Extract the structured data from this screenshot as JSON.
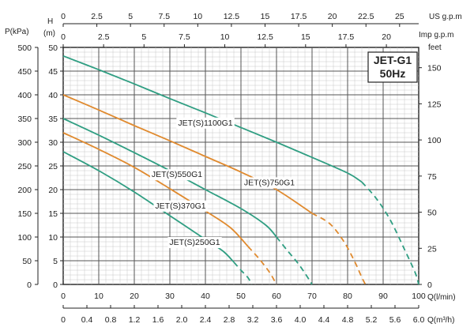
{
  "chart_data": {
    "type": "line",
    "title": "JET-G1",
    "subtitle": "50Hz",
    "axes": {
      "q_lmin": {
        "label": "Q(l/min)",
        "min": 0,
        "max": 100,
        "ticks": [
          "0",
          "10",
          "20",
          "30",
          "40",
          "50",
          "60",
          "70",
          "80",
          "90",
          "100"
        ]
      },
      "q_m3h": {
        "label": "Q(m³/h)",
        "min": 0,
        "max": 6,
        "ticks": [
          "0",
          "0.4",
          "0.8",
          "1.2",
          "1.6",
          "2.0",
          "2.4",
          "2.8",
          "3.2",
          "3.6",
          "4.0",
          "4.4",
          "4.8",
          "5.2",
          "5.6",
          "6.0"
        ]
      },
      "us_gpm": {
        "label": "US  g.p.m",
        "min": 0,
        "max": 26.42,
        "ticks": [
          "0",
          "2.5",
          "5",
          "7.5",
          "10",
          "12.5",
          "15",
          "17.5",
          "20",
          "22.5",
          "25"
        ]
      },
      "imp_gpm": {
        "label": "Imp  g.p.m",
        "min": 0,
        "max": 22,
        "ticks": [
          "0",
          "2.5",
          "5",
          "7.5",
          "10",
          "12.5",
          "15",
          "17.5",
          "20"
        ]
      },
      "h_m": {
        "label_top": "H",
        "label_unit": "(m)",
        "min": 0,
        "max": 50,
        "ticks": [
          "0",
          "5",
          "10",
          "15",
          "20",
          "25",
          "30",
          "35",
          "40",
          "45",
          "50"
        ]
      },
      "p_kpa": {
        "label": "P(kPa)",
        "min": 0,
        "max": 500,
        "ticks": [
          "0",
          "50",
          "100",
          "150",
          "200",
          "250",
          "300",
          "350",
          "400",
          "450",
          "500"
        ]
      },
      "feet": {
        "label": "feet",
        "min": 0,
        "max": 164.04,
        "ticks": [
          "0",
          "25",
          "50",
          "75",
          "100",
          "125",
          "150"
        ]
      }
    },
    "grid": true,
    "series": [
      {
        "name": "JET(S)1100G1",
        "color": "#2f9e82",
        "solid_until": 84,
        "points": [
          [
            0,
            48.2
          ],
          [
            10,
            45.3
          ],
          [
            20,
            42.3
          ],
          [
            30,
            39.2
          ],
          [
            40,
            36.2
          ],
          [
            50,
            33.1
          ],
          [
            60,
            30.0
          ],
          [
            70,
            26.8
          ],
          [
            80,
            23.5
          ],
          [
            84,
            21.6
          ],
          [
            88,
            18.2
          ],
          [
            92,
            13.6
          ],
          [
            96,
            7.4
          ],
          [
            99,
            2.5
          ],
          [
            100,
            0
          ]
        ]
      },
      {
        "name": "JET(S)750G1",
        "color": "#e08a2e",
        "solid_until": 70,
        "points": [
          [
            0,
            40.0
          ],
          [
            10,
            36.8
          ],
          [
            20,
            33.5
          ],
          [
            30,
            30.3
          ],
          [
            40,
            27.0
          ],
          [
            50,
            23.7
          ],
          [
            60,
            20.0
          ],
          [
            70,
            15.0
          ],
          [
            75,
            12.8
          ],
          [
            79,
            9.0
          ],
          [
            82,
            4.8
          ],
          [
            84,
            1.5
          ],
          [
            85,
            0
          ]
        ]
      },
      {
        "name": "JET(S)550G1",
        "color": "#2f9e82",
        "solid_until": 60,
        "points": [
          [
            0,
            35.0
          ],
          [
            10,
            31.5
          ],
          [
            20,
            27.8
          ],
          [
            30,
            24.0
          ],
          [
            40,
            20.0
          ],
          [
            50,
            16.0
          ],
          [
            57,
            12.5
          ],
          [
            60,
            10.0
          ],
          [
            63,
            7.2
          ],
          [
            66,
            4.5
          ],
          [
            68.5,
            1.8
          ],
          [
            70,
            0
          ]
        ]
      },
      {
        "name": "JET(S)370G1",
        "color": "#e08a2e",
        "solid_until": 52,
        "points": [
          [
            0,
            32.0
          ],
          [
            10,
            28.5
          ],
          [
            20,
            24.7
          ],
          [
            30,
            20.2
          ],
          [
            40,
            15.5
          ],
          [
            47,
            12.0
          ],
          [
            52,
            8.0
          ],
          [
            55,
            5.5
          ],
          [
            58,
            2.6
          ],
          [
            60,
            0
          ]
        ]
      },
      {
        "name": "JET(S)250G1",
        "color": "#2f9e82",
        "solid_until": 48,
        "points": [
          [
            0,
            28.0
          ],
          [
            10,
            24.0
          ],
          [
            20,
            19.5
          ],
          [
            30,
            14.5
          ],
          [
            40,
            9.5
          ],
          [
            45,
            7.0
          ],
          [
            48,
            4.7
          ],
          [
            50,
            3.0
          ],
          [
            52,
            1.4
          ],
          [
            53,
            0
          ]
        ]
      }
    ]
  }
}
